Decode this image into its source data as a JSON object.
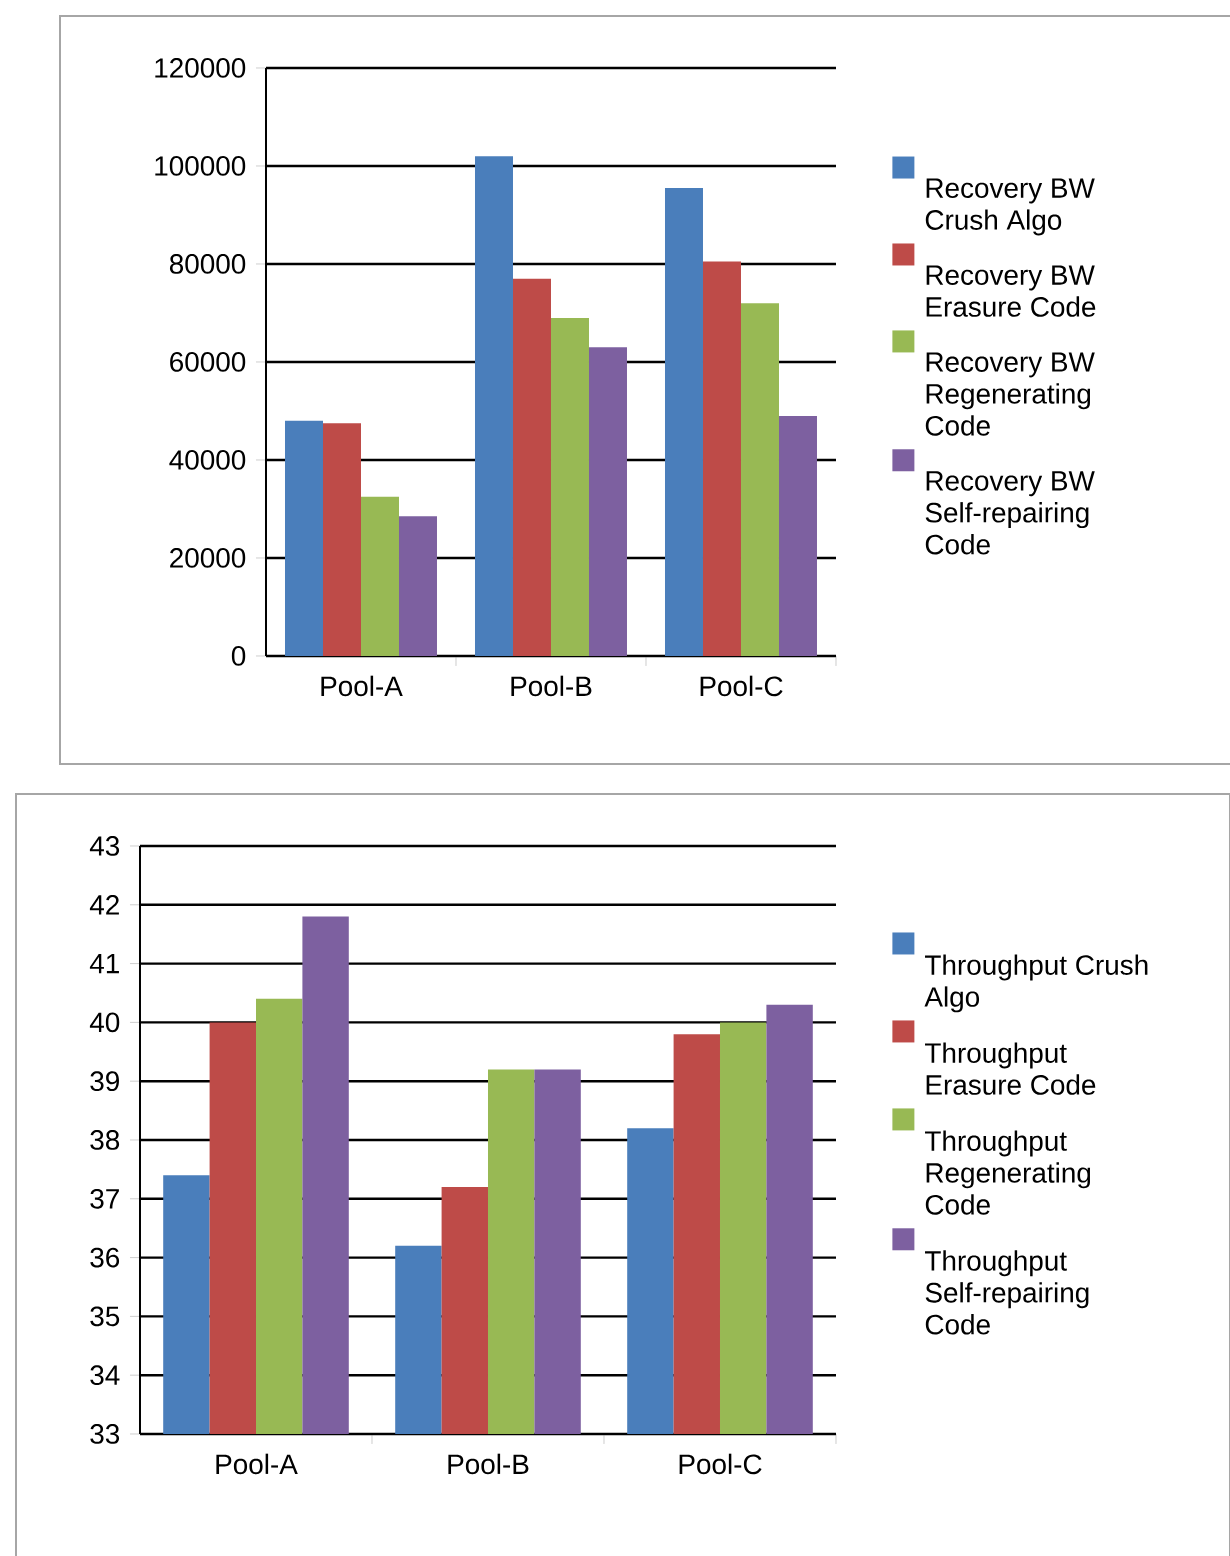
{
  "chart_data": [
    {
      "type": "bar",
      "categories": [
        "Pool-A",
        "Pool-B",
        "Pool-C"
      ],
      "ylim": [
        0,
        120000
      ],
      "yticks": [
        0,
        20000,
        40000,
        60000,
        80000,
        100000,
        120000
      ],
      "grid": "y",
      "legend": "right",
      "series": [
        {
          "name": "Recovery BW Crush Algo",
          "color": "#4a7ebb",
          "values": [
            48000,
            102000,
            95500
          ]
        },
        {
          "name": "Recovery BW Erasure Code",
          "color": "#be4b48",
          "values": [
            47500,
            77000,
            80500
          ]
        },
        {
          "name": "Recovery BW Regenerating Code",
          "color": "#98b954",
          "values": [
            32500,
            69000,
            72000
          ]
        },
        {
          "name": "Recovery BW Self-repairing Code",
          "color": "#7d60a0",
          "values": [
            28500,
            63000,
            49000
          ]
        }
      ]
    },
    {
      "type": "bar",
      "categories": [
        "Pool-A",
        "Pool-B",
        "Pool-C"
      ],
      "ylim": [
        33,
        43
      ],
      "yticks": [
        33,
        34,
        35,
        36,
        37,
        38,
        39,
        40,
        41,
        42,
        43
      ],
      "grid": "y",
      "legend": "right",
      "series": [
        {
          "name": "Throughput Crush Algo",
          "color": "#4a7ebb",
          "values": [
            37.4,
            36.2,
            38.2
          ]
        },
        {
          "name": "Throughput Erasure Code",
          "color": "#be4b48",
          "values": [
            40.0,
            37.2,
            39.8
          ]
        },
        {
          "name": "Throughput Regenerating Code",
          "color": "#98b954",
          "values": [
            40.4,
            39.2,
            40.0
          ]
        },
        {
          "name": "Throughput Self-repairing Code",
          "color": "#7d60a0",
          "values": [
            41.8,
            39.2,
            40.3
          ]
        }
      ]
    }
  ]
}
